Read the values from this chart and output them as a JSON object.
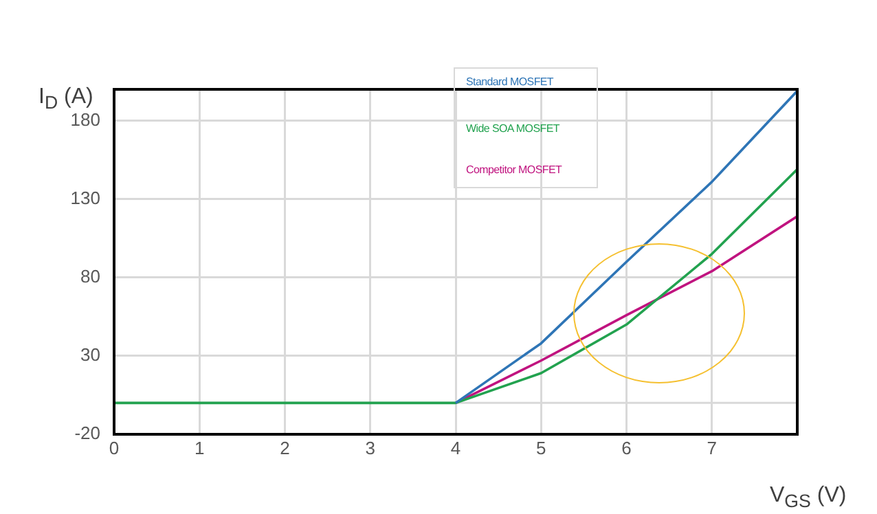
{
  "chart_data": {
    "type": "line",
    "xlabel": "V$_{GS}$ (V)",
    "ylabel": "I$_{D}$ (A)",
    "x": [
      0,
      1,
      2,
      3,
      4,
      5,
      6,
      7,
      8
    ],
    "series": [
      {
        "name": "Standard MOSFET",
        "color": "#2e75b6",
        "values": [
          null,
          null,
          null,
          null,
          0,
          38,
          90,
          141,
          199
        ]
      },
      {
        "name": "Wide SOA MOSFET",
        "color": "#22a24f",
        "values": [
          0,
          0,
          0,
          0,
          0,
          19,
          50,
          95,
          149
        ]
      },
      {
        "name": "Competitor MOSFET",
        "color": "#c0137f",
        "values": [
          null,
          null,
          null,
          null,
          0,
          27,
          56,
          84,
          119
        ]
      }
    ],
    "xlim": [
      0,
      8
    ],
    "xticks": [
      0,
      1,
      2,
      3,
      4,
      5,
      6,
      7
    ],
    "ylim": [
      -20,
      200
    ],
    "yticks": [
      -20,
      30,
      80,
      130,
      180
    ],
    "ref_lines": [
      {
        "axis": "y",
        "value": 0,
        "color": "#d9d9d9"
      }
    ],
    "grid": true,
    "legend": "top",
    "marker": "none",
    "line_style": "solid"
  }
}
